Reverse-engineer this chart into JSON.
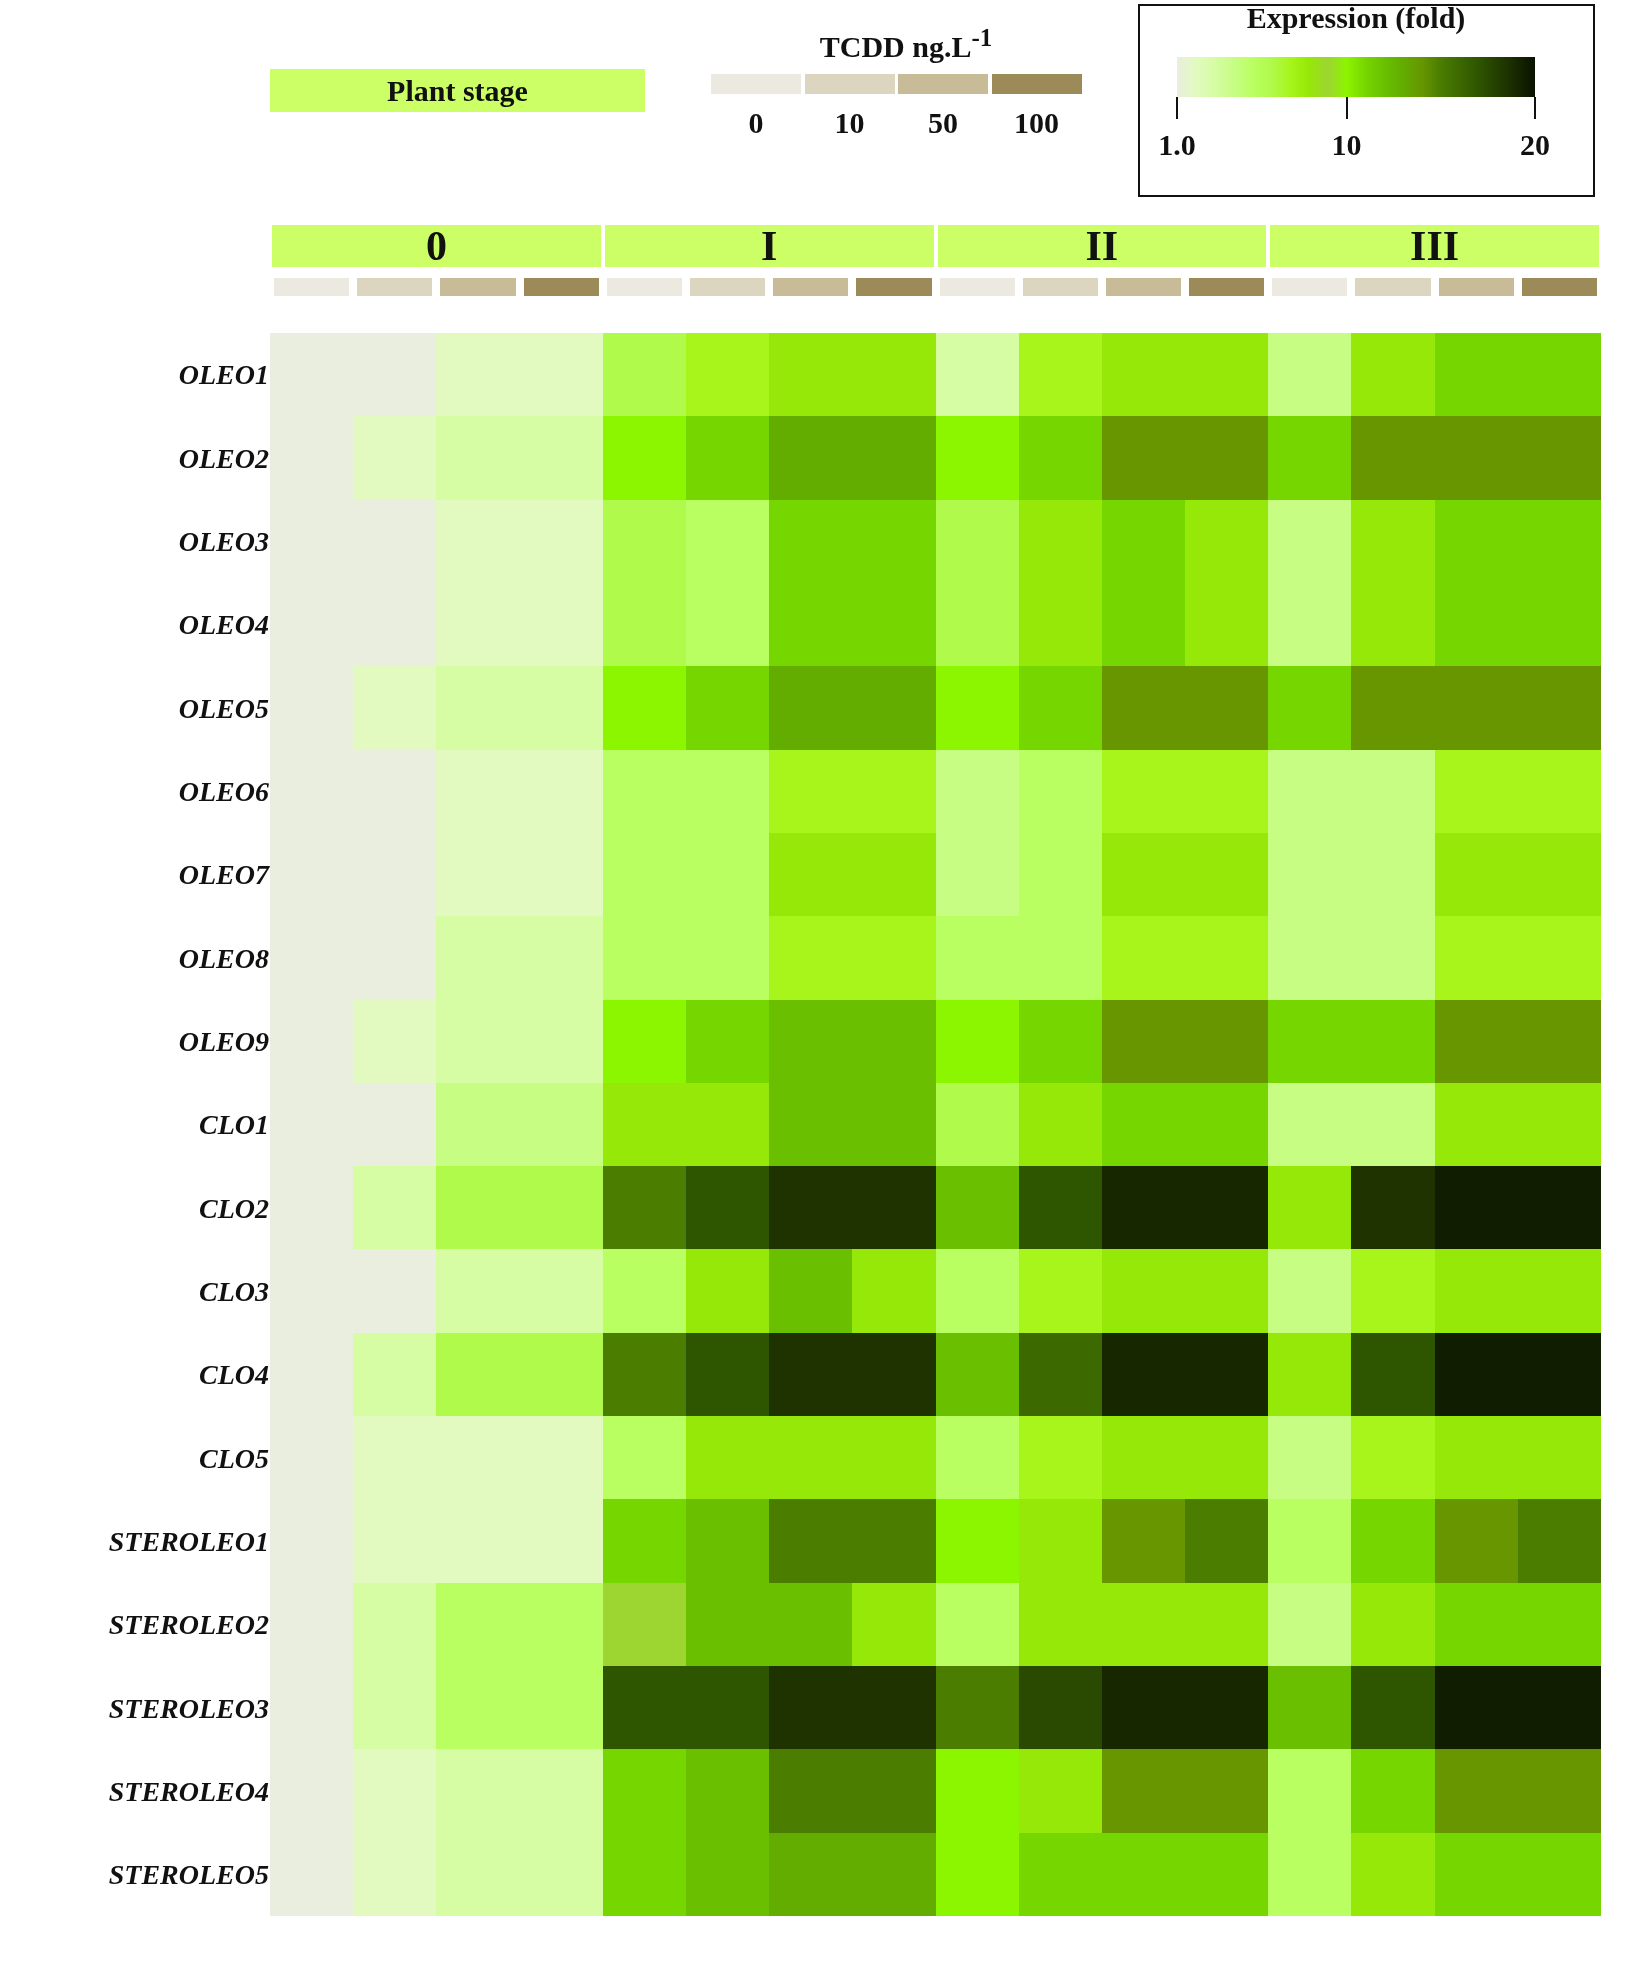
{
  "chart_data": {
    "type": "heatmap",
    "clabel": "Expression (fold)",
    "annotations": [
      "Plant stage",
      "TCDD ng.L$^{-1}$",
      "0",
      "10",
      "50",
      "100",
      "0",
      "I",
      "II",
      "III"
    ],
    "categories": [
      null,
      null,
      null,
      null,
      null,
      null,
      null,
      null,
      null,
      null,
      null,
      null,
      null,
      null,
      null,
      null
    ],
    "y_categories": [
      "OLEO1",
      "OLEO2",
      "OLEO3",
      "OLEO4",
      "OLEO5",
      "OLEO6",
      "OLEO7",
      "OLEO8",
      "OLEO9",
      "CLO1",
      "CLO2",
      "CLO3",
      "CLO4",
      "CLO5",
      "STEROLEO1",
      "STEROLEO2",
      "STEROLEO3",
      "STEROLEO4",
      "STEROLEO5"
    ],
    "cells": [
      [
        1,
        1,
        2,
        2,
        6,
        7,
        8,
        8,
        3,
        7,
        8,
        8,
        4,
        8,
        11,
        11
      ],
      [
        1,
        2,
        3,
        3,
        10,
        11,
        13,
        13,
        10,
        11,
        14,
        14,
        11,
        14,
        14,
        14
      ],
      [
        1,
        1,
        2,
        2,
        6,
        5,
        11,
        11,
        6,
        8,
        11,
        8,
        4,
        8,
        11,
        11
      ],
      [
        1,
        1,
        2,
        2,
        6,
        5,
        11,
        11,
        6,
        8,
        11,
        8,
        4,
        8,
        11,
        11
      ],
      [
        1,
        2,
        3,
        3,
        10,
        11,
        13,
        13,
        10,
        11,
        14,
        14,
        11,
        14,
        14,
        14
      ],
      [
        1,
        1,
        2,
        2,
        5,
        5,
        7,
        7,
        4,
        5,
        7,
        7,
        4,
        4,
        7,
        7
      ],
      [
        1,
        1,
        2,
        2,
        5,
        5,
        8,
        8,
        4,
        5,
        8,
        8,
        4,
        4,
        8,
        8
      ],
      [
        1,
        1,
        3,
        3,
        5,
        5,
        7,
        7,
        5,
        5,
        7,
        7,
        4,
        4,
        7,
        7
      ],
      [
        1,
        2,
        3,
        3,
        10,
        11,
        12,
        12,
        10,
        11,
        14,
        14,
        11,
        11,
        14,
        14
      ],
      [
        1,
        1,
        4,
        4,
        8,
        8,
        12,
        12,
        6,
        8,
        11,
        11,
        4,
        4,
        8,
        8
      ],
      [
        1,
        3,
        6,
        6,
        15,
        17,
        18.5,
        18.5,
        12,
        17,
        19,
        19,
        8,
        18.5,
        19.5,
        19.5
      ],
      [
        1,
        1,
        3,
        3,
        5,
        8,
        12,
        8,
        5,
        7,
        8,
        8,
        4,
        7,
        8,
        8
      ],
      [
        1,
        3,
        6,
        6,
        15,
        17,
        18.5,
        18.5,
        12,
        16,
        19,
        19,
        8,
        17,
        19.5,
        19.5
      ],
      [
        1,
        2,
        2,
        2,
        5,
        8,
        8,
        8,
        5,
        7,
        8,
        8,
        4,
        7,
        8,
        8
      ],
      [
        1,
        2,
        2,
        2,
        11,
        12,
        15,
        15,
        10,
        8,
        14,
        15,
        5,
        11,
        14,
        15
      ],
      [
        1,
        3,
        5,
        5,
        9,
        12,
        12,
        8,
        5,
        8,
        8,
        8,
        4,
        8,
        11,
        11
      ],
      [
        1,
        3,
        5,
        5,
        17,
        17,
        18.5,
        18.5,
        15,
        17.5,
        19,
        19,
        12,
        17,
        19.5,
        19.5
      ],
      [
        1,
        2,
        3,
        3,
        11,
        12,
        15,
        15,
        10,
        8,
        14,
        14,
        5,
        11,
        14,
        14
      ],
      [
        1,
        2,
        3,
        3,
        11,
        12,
        13,
        13,
        10,
        11,
        11,
        11,
        5,
        8,
        11,
        11
      ]
    ],
    "clim": [
      1,
      20
    ],
    "cticks": [
      {
        "value": 1,
        "label": "1.0"
      },
      10,
      20
    ]
  }
}
